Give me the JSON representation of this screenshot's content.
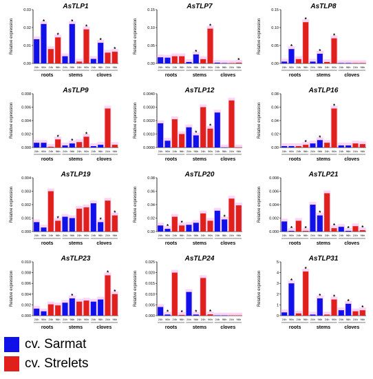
{
  "legend": {
    "sarmat_label": "cv. Sarmat",
    "strelets_label": "cv. Strelets",
    "sarmat_color": "#1010e8",
    "strelets_color": "#e0201a"
  },
  "shared": {
    "ylabel": "Relative expression",
    "groups": [
      "roots",
      "stems",
      "cloves"
    ],
    "time_labels": [
      "24h",
      "96h"
    ],
    "highlight_color": "#f7b3ee",
    "significance_mark": "*"
  },
  "chart_data": [
    {
      "type": "bar",
      "title": "AsTLP1",
      "ylim": [
        0,
        0.03
      ],
      "yticks": [
        "0.00",
        "0.01",
        "0.02",
        "0.03"
      ],
      "ytick_values": [
        0,
        0.01,
        0.02,
        0.03
      ],
      "series": [
        {
          "name": "cv. Sarmat",
          "values": [
            0.0135,
            0.022,
            0.004,
            0.022,
            0.0025,
            0.0115
          ]
        },
        {
          "name": "cv. Strelets",
          "values": [
            0.008,
            0.0145,
            0.001,
            0.019,
            0.006,
            0.0065
          ]
        }
      ],
      "significant": [
        [
          false,
          true,
          false,
          true,
          false,
          true
        ],
        [
          false,
          true,
          false,
          true,
          false,
          true
        ]
      ]
    },
    {
      "type": "bar",
      "title": "AsTLP7",
      "ylim": [
        0,
        0.15
      ],
      "yticks": [
        "0.00",
        "0.05",
        "0.10",
        "0.15"
      ],
      "ytick_values": [
        0,
        0.05,
        0.1,
        0.15
      ],
      "series": [
        {
          "name": "cv. Sarmat",
          "values": [
            0.017,
            0.016,
            0.004,
            0.025,
            0.002,
            0.001
          ]
        },
        {
          "name": "cv. Strelets",
          "values": [
            0.02,
            0.02,
            0.012,
            0.097,
            0.001,
            0.002
          ]
        }
      ],
      "significant": [
        [
          false,
          false,
          false,
          true,
          false,
          false
        ],
        [
          false,
          false,
          false,
          true,
          false,
          true
        ]
      ]
    },
    {
      "type": "bar",
      "title": "AsTLP8",
      "ylim": [
        0,
        0.15
      ],
      "yticks": [
        "0.00",
        "0.05",
        "0.10",
        "0.15"
      ],
      "ytick_values": [
        0,
        0.05,
        0.1,
        0.15
      ],
      "series": [
        {
          "name": "cv. Sarmat",
          "values": [
            0.005,
            0.04,
            0.005,
            0.027,
            0.001,
            0.001
          ]
        },
        {
          "name": "cv. Strelets",
          "values": [
            0.012,
            0.115,
            0.004,
            0.07,
            0.001,
            0.001
          ]
        }
      ],
      "significant": [
        [
          false,
          true,
          false,
          true,
          false,
          false
        ],
        [
          false,
          true,
          false,
          true,
          false,
          false
        ]
      ]
    },
    {
      "type": "bar",
      "title": "AsTLP9",
      "ylim": [
        0,
        0.008
      ],
      "yticks": [
        "0.000",
        "0.002",
        "0.004",
        "0.006",
        "0.008"
      ],
      "ytick_values": [
        0,
        0.002,
        0.004,
        0.006,
        0.008
      ],
      "series": [
        {
          "name": "cv. Sarmat",
          "values": [
            0.0007,
            0.0007,
            0.0003,
            0.0006,
            0.0002,
            0.0004
          ]
        },
        {
          "name": "cv. Strelets",
          "values": [
            0.0001,
            0.0012,
            0.0008,
            0.0016,
            0.0058,
            0.0004
          ]
        }
      ],
      "significant": [
        [
          false,
          false,
          false,
          true,
          false,
          false
        ],
        [
          false,
          true,
          false,
          true,
          false,
          false
        ]
      ]
    },
    {
      "type": "bar",
      "title": "AsTLP12",
      "ylim": [
        0,
        0.004
      ],
      "yticks": [
        "0.0000",
        "0.0010",
        "0.0020",
        "0.0030",
        "0.0040"
      ],
      "ytick_values": [
        0,
        0.001,
        0.002,
        0.003,
        0.004
      ],
      "series": [
        {
          "name": "cv. Sarmat",
          "values": [
            0.0018,
            0.0005,
            0.0015,
            0.0009,
            0.0026,
            0.0
          ]
        },
        {
          "name": "cv. Strelets",
          "values": [
            0.0021,
            0.001,
            0.003,
            0.0014,
            0.0035,
            0.0
          ]
        }
      ],
      "significant": [
        [
          false,
          false,
          false,
          true,
          false,
          false
        ],
        [
          false,
          false,
          false,
          true,
          false,
          false
        ]
      ]
    },
    {
      "type": "bar",
      "title": "AsTLP16",
      "ylim": [
        0,
        0.08
      ],
      "yticks": [
        "0.00",
        "0.02",
        "0.04",
        "0.06",
        "0.08"
      ],
      "ytick_values": [
        0,
        0.02,
        0.04,
        0.06,
        0.08
      ],
      "series": [
        {
          "name": "cv. Sarmat",
          "values": [
            0.002,
            0.002,
            0.006,
            0.011,
            0.003,
            0.003
          ]
        },
        {
          "name": "cv. Strelets",
          "values": [
            0.002,
            0.004,
            0.007,
            0.058,
            0.006,
            0.005
          ]
        }
      ],
      "significant": [
        [
          false,
          false,
          false,
          true,
          false,
          false
        ],
        [
          false,
          true,
          false,
          true,
          false,
          false
        ]
      ]
    },
    {
      "type": "bar",
      "title": "AsTLP19",
      "ylim": [
        0,
        0.004
      ],
      "yticks": [
        "0.000",
        "0.001",
        "0.002",
        "0.003",
        "0.004"
      ],
      "ytick_values": [
        0,
        0.001,
        0.002,
        0.003,
        0.004
      ],
      "series": [
        {
          "name": "cv. Sarmat",
          "values": [
            0.0007,
            0.0003,
            0.0011,
            0.001,
            0.0021,
            0.0007
          ]
        },
        {
          "name": "cv. Strelets",
          "values": [
            0.003,
            0.0008,
            0.0017,
            0.0018,
            0.0023,
            0.0012
          ]
        }
      ],
      "significant": [
        [
          false,
          false,
          false,
          false,
          false,
          true
        ],
        [
          false,
          true,
          false,
          false,
          false,
          true
        ]
      ]
    },
    {
      "type": "bar",
      "title": "AsTLP20",
      "ylim": [
        0,
        0.08
      ],
      "yticks": [
        "0.00",
        "0.02",
        "0.04",
        "0.06",
        "0.08"
      ],
      "ytick_values": [
        0,
        0.02,
        0.04,
        0.06,
        0.08
      ],
      "series": [
        {
          "name": "cv. Sarmat",
          "values": [
            0.009,
            0.004,
            0.01,
            0.013,
            0.031,
            0.018
          ]
        },
        {
          "name": "cv. Strelets",
          "values": [
            0.022,
            0.009,
            0.027,
            0.016,
            0.049,
            0.039
          ]
        }
      ],
      "significant": [
        [
          false,
          true,
          false,
          false,
          false,
          true
        ],
        [
          false,
          true,
          false,
          false,
          false,
          false
        ]
      ]
    },
    {
      "type": "bar",
      "title": "AsTLP21",
      "ylim": [
        0,
        0.008
      ],
      "yticks": [
        "0.000",
        "0.002",
        "0.004",
        "0.006",
        "0.008"
      ],
      "ytick_values": [
        0,
        0.002,
        0.004,
        0.006,
        0.008
      ],
      "series": [
        {
          "name": "cv. Sarmat",
          "values": [
            0.0015,
            0.0001,
            0.004,
            0.0024,
            0.0007,
            0.0001
          ]
        },
        {
          "name": "cv. Strelets",
          "values": [
            0.0016,
            0.0001,
            0.0057,
            0.0005,
            0.0008,
            0.0002
          ]
        }
      ],
      "significant": [
        [
          false,
          true,
          false,
          true,
          false,
          true
        ],
        [
          false,
          true,
          false,
          true,
          false,
          true
        ]
      ]
    },
    {
      "type": "bar",
      "title": "AsTLP23",
      "ylim": [
        0,
        0.01
      ],
      "yticks": [
        "0.000",
        "0.002",
        "0.004",
        "0.006",
        "0.008",
        "0.010"
      ],
      "ytick_values": [
        0,
        0.002,
        0.004,
        0.006,
        0.008,
        0.01
      ],
      "series": [
        {
          "name": "cv. Sarmat",
          "values": [
            0.0013,
            0.0008,
            0.0024,
            0.0032,
            0.0026,
            0.003
          ]
        },
        {
          "name": "cv. Strelets",
          "values": [
            0.0021,
            0.0019,
            0.0026,
            0.0028,
            0.0075,
            0.004
          ]
        }
      ],
      "significant": [
        [
          false,
          false,
          false,
          true,
          false,
          false
        ],
        [
          false,
          false,
          false,
          false,
          true,
          true
        ]
      ]
    },
    {
      "type": "bar",
      "title": "AsTLP24",
      "ylim": [
        0,
        0.025
      ],
      "yticks": [
        "0.000",
        "0.005",
        "0.010",
        "0.015",
        "0.020",
        "0.025"
      ],
      "ytick_values": [
        0,
        0.005,
        0.01,
        0.015,
        0.02,
        0.025
      ],
      "series": [
        {
          "name": "cv. Sarmat",
          "values": [
            0.004,
            0.0005,
            0.011,
            0.0005,
            0.0001,
            0.0001
          ]
        },
        {
          "name": "cv. Strelets",
          "values": [
            0.02,
            0.0003,
            0.0175,
            0.0006,
            0.0001,
            0.0001
          ]
        }
      ],
      "significant": [
        [
          false,
          true,
          false,
          true,
          false,
          false
        ],
        [
          false,
          true,
          false,
          true,
          false,
          false
        ]
      ]
    },
    {
      "type": "bar",
      "title": "AsTLP31",
      "ylim": [
        0,
        5
      ],
      "yticks": [
        "0",
        "1",
        "2",
        "3",
        "4",
        "5"
      ],
      "ytick_values": [
        0,
        1,
        2,
        3,
        4,
        5
      ],
      "series": [
        {
          "name": "cv. Sarmat",
          "values": [
            0.3,
            3.0,
            0.1,
            1.6,
            0.5,
            1.1
          ]
        },
        {
          "name": "cv. Strelets",
          "values": [
            0.2,
            4.1,
            0.1,
            1.5,
            0.4,
            0.5
          ]
        }
      ],
      "significant": [
        [
          false,
          true,
          false,
          true,
          false,
          true
        ],
        [
          false,
          true,
          false,
          true,
          false,
          true
        ]
      ]
    }
  ]
}
